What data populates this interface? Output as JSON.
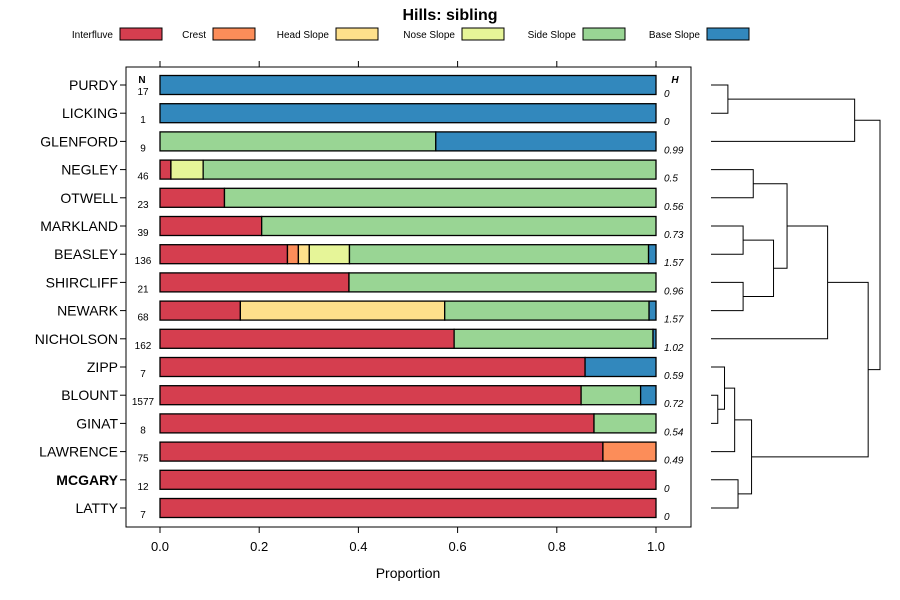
{
  "chart_data": {
    "type": "bar",
    "orientation": "horizontal",
    "stacked": true,
    "title": "Hills: sibling",
    "xlabel": "Proportion",
    "ylabel": "",
    "xlim": [
      0,
      1
    ],
    "xticks": [
      "0.0",
      "0.2",
      "0.4",
      "0.6",
      "0.8",
      "1.0"
    ],
    "n_header": "N",
    "h_header": "H",
    "legend_position": "top",
    "series": [
      {
        "name": "Interfluve",
        "color": "#D53E4F"
      },
      {
        "name": "Crest",
        "color": "#FC8D59"
      },
      {
        "name": "Head Slope",
        "color": "#FEE08B"
      },
      {
        "name": "Nose Slope",
        "color": "#E6F598"
      },
      {
        "name": "Side Slope",
        "color": "#99D594"
      },
      {
        "name": "Base Slope",
        "color": "#3288BD"
      }
    ],
    "rows": [
      {
        "label": "PURDY",
        "bold": false,
        "n": "17",
        "h": "0",
        "values": [
          0,
          0,
          0,
          0,
          0,
          1.0
        ]
      },
      {
        "label": "LICKING",
        "bold": false,
        "n": "1",
        "h": "0",
        "values": [
          0,
          0,
          0,
          0,
          0,
          1.0
        ]
      },
      {
        "label": "GLENFORD",
        "bold": false,
        "n": "9",
        "h": "0.99",
        "values": [
          0,
          0,
          0,
          0,
          0.556,
          0.444
        ]
      },
      {
        "label": "NEGLEY",
        "bold": false,
        "n": "46",
        "h": "0.5",
        "values": [
          0.022,
          0,
          0,
          0.065,
          0.913,
          0
        ]
      },
      {
        "label": "OTWELL",
        "bold": false,
        "n": "23",
        "h": "0.56",
        "values": [
          0.13,
          0,
          0,
          0,
          0.87,
          0
        ]
      },
      {
        "label": "MARKLAND",
        "bold": false,
        "n": "39",
        "h": "0.73",
        "values": [
          0.205,
          0,
          0,
          0,
          0.795,
          0
        ]
      },
      {
        "label": "BEASLEY",
        "bold": false,
        "n": "136",
        "h": "1.57",
        "values": [
          0.257,
          0.022,
          0.022,
          0.081,
          0.603,
          0.015
        ]
      },
      {
        "label": "SHIRCLIFF",
        "bold": false,
        "n": "21",
        "h": "0.96",
        "values": [
          0.381,
          0,
          0,
          0,
          0.619,
          0
        ]
      },
      {
        "label": "NEWARK",
        "bold": false,
        "n": "68",
        "h": "1.57",
        "values": [
          0.162,
          0,
          0.412,
          0,
          0.412,
          0.014
        ]
      },
      {
        "label": "NICHOLSON",
        "bold": false,
        "n": "162",
        "h": "1.02",
        "values": [
          0.593,
          0,
          0,
          0,
          0.401,
          0.006
        ]
      },
      {
        "label": "ZIPP",
        "bold": false,
        "n": "7",
        "h": "0.59",
        "values": [
          0.857,
          0,
          0,
          0,
          0,
          0.143
        ]
      },
      {
        "label": "BLOUNT",
        "bold": false,
        "n": "1577",
        "h": "0.72",
        "values": [
          0.849,
          0,
          0,
          0,
          0.12,
          0.031
        ]
      },
      {
        "label": "GINAT",
        "bold": false,
        "n": "8",
        "h": "0.54",
        "values": [
          0.875,
          0,
          0,
          0,
          0.125,
          0
        ]
      },
      {
        "label": "LAWRENCE",
        "bold": false,
        "n": "75",
        "h": "0.49",
        "values": [
          0.893,
          0.107,
          0,
          0,
          0,
          0
        ]
      },
      {
        "label": "MCGARY",
        "bold": true,
        "n": "12",
        "h": "0",
        "values": [
          1.0,
          0,
          0,
          0,
          0,
          0
        ]
      },
      {
        "label": "LATTY",
        "bold": false,
        "n": "7",
        "h": "0",
        "values": [
          1.0,
          0,
          0,
          0,
          0,
          0
        ]
      }
    ],
    "dendrogram": {
      "leaves": [
        "PURDY",
        "LICKING",
        "GLENFORD",
        "NEGLEY",
        "OTWELL",
        "MARKLAND",
        "BEASLEY",
        "SHIRCLIFF",
        "NEWARK",
        "NICHOLSON",
        "ZIPP",
        "BLOUNT",
        "GINAT",
        "LAWRENCE",
        "MCGARY",
        "LATTY"
      ],
      "merges": [
        {
          "children": [
            "L0",
            "L1"
          ],
          "height": 0.1
        },
        {
          "children": [
            "N0",
            "L2"
          ],
          "height": 0.85
        },
        {
          "children": [
            "L3",
            "L4"
          ],
          "height": 0.25
        },
        {
          "children": [
            "L5",
            "L6"
          ],
          "height": 0.19
        },
        {
          "children": [
            "L7",
            "L8"
          ],
          "height": 0.19
        },
        {
          "children": [
            "N3",
            "N4"
          ],
          "height": 0.37
        },
        {
          "children": [
            "N2",
            "N5"
          ],
          "height": 0.45
        },
        {
          "children": [
            "N6",
            "L9"
          ],
          "height": 0.69
        },
        {
          "children": [
            "L11",
            "L12"
          ],
          "height": 0.04
        },
        {
          "children": [
            "L10",
            "N8"
          ],
          "height": 0.08
        },
        {
          "children": [
            "N9",
            "L13"
          ],
          "height": 0.14
        },
        {
          "children": [
            "L14",
            "L15"
          ],
          "height": 0.16
        },
        {
          "children": [
            "N10",
            "N11"
          ],
          "height": 0.24
        },
        {
          "children": [
            "N7",
            "N12"
          ],
          "height": 0.93
        },
        {
          "children": [
            "N1",
            "N13"
          ],
          "height": 1.0
        }
      ]
    }
  }
}
